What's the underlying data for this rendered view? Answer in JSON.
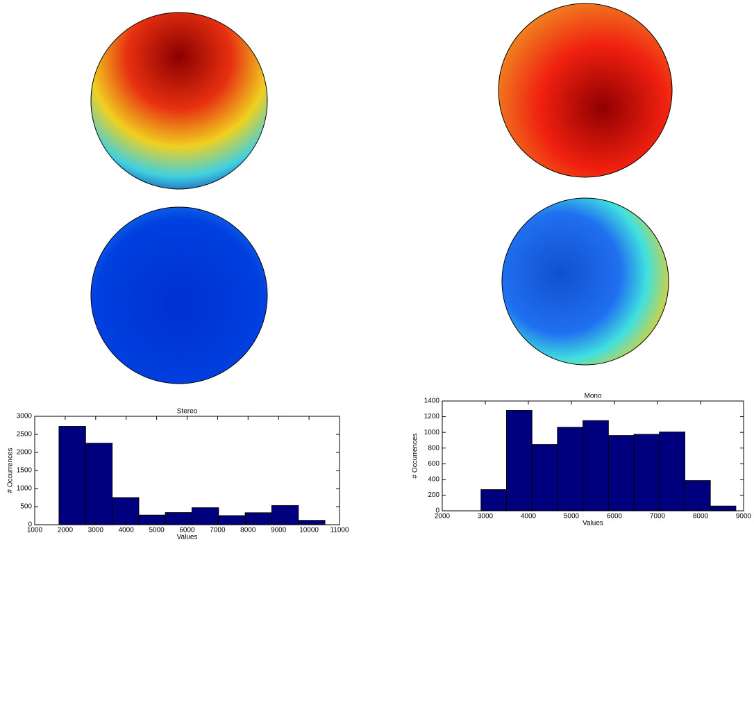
{
  "chart_data": [
    {
      "type": "histogram",
      "title": "Stereo",
      "xlabel": "Values",
      "ylabel": "# Occurrences",
      "bins": [
        1797,
        2670,
        3542,
        4415,
        5287,
        6160,
        7032,
        7905,
        8777,
        9650,
        10522
      ],
      "values": [
        2720,
        2255,
        750,
        265,
        335,
        470,
        250,
        330,
        530,
        120
      ],
      "color": "#00007f",
      "xlim": [
        1000,
        11000
      ],
      "xticks": [
        1000,
        2000,
        3000,
        4000,
        5000,
        6000,
        7000,
        8000,
        9000,
        10000,
        11000
      ],
      "ylim": [
        0,
        3000
      ],
      "yticks": [
        0,
        500,
        1000,
        1500,
        2000,
        2500,
        3000
      ],
      "grid": false
    },
    {
      "type": "histogram",
      "title": "Mono",
      "xlabel": "Values",
      "ylabel": "# Occurrences",
      "bins": [
        2900,
        3492,
        4084,
        4676,
        5268,
        5860,
        6452,
        7044,
        7636,
        8228,
        8820
      ],
      "values": [
        270,
        1280,
        845,
        1065,
        1150,
        960,
        975,
        1005,
        385,
        60
      ],
      "color": "#00007f",
      "xlim": [
        2000,
        9000
      ],
      "xticks": [
        2000,
        3000,
        4000,
        5000,
        6000,
        7000,
        8000,
        9000
      ],
      "ylim": [
        0,
        1400
      ],
      "yticks": [
        0,
        200,
        400,
        600,
        800,
        1000,
        1200,
        1400
      ],
      "grid": false
    }
  ]
}
